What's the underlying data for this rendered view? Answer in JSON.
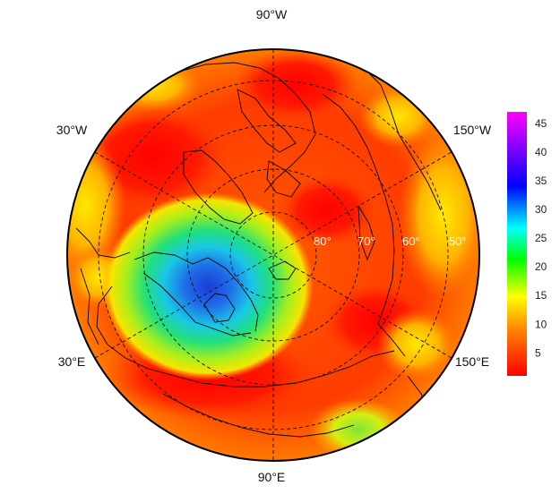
{
  "map": {
    "projection": "north-polar-stereographic",
    "longitude_labels": {
      "top": "90°W",
      "upper_left": "30°W",
      "upper_right": "150°W",
      "lower_left": "30°E",
      "lower_right": "150°E",
      "bottom": "90°E"
    },
    "latitude_labels": [
      "80°",
      "70°",
      "60°",
      "50°"
    ]
  },
  "colorbar": {
    "ticks": [
      "5",
      "10",
      "15",
      "20",
      "25",
      "30",
      "35",
      "40",
      "45"
    ],
    "range": [
      1,
      47
    ],
    "colors": [
      "#ff0000",
      "#ff8000",
      "#ffff00",
      "#00ff00",
      "#00ffff",
      "#0000ff",
      "#ff00ff"
    ]
  }
}
